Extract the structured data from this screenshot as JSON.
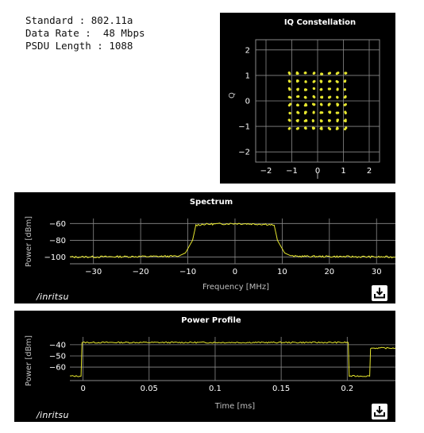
{
  "info": {
    "standard": "Standard : 802.11a",
    "data_rate": "Data Rate :  48 Mbps",
    "psdu_length": "PSDU Length : 1088"
  },
  "colors": {
    "trace": "#e6e62e",
    "grid": "#8a8a8a",
    "background": "#000000"
  },
  "icons": {
    "download": "download-icon"
  },
  "brand": {
    "logo_text": "/inritsu"
  },
  "chart_data": [
    {
      "type": "scatter",
      "title": "IQ Constellation",
      "xlabel": "I",
      "ylabel": "Q",
      "xlim": [
        -2.4,
        2.4
      ],
      "ylim": [
        -2.4,
        2.4
      ],
      "xticks": [
        -2,
        -1,
        0,
        1,
        2
      ],
      "yticks": [
        -2,
        -1,
        0,
        1,
        2
      ],
      "grid": true,
      "points": "64-QAM grid, levels ±1.08, ±0.77, ±0.46, ±0.15 on I and Q"
    },
    {
      "type": "line",
      "title": "Spectrum",
      "xlabel": "Frequency [MHz]",
      "ylabel": "Power [dBm]",
      "xlim": [
        -35,
        34
      ],
      "ylim": [
        -108,
        -54
      ],
      "xticks": [
        -30,
        -20,
        -10,
        0,
        10,
        20,
        30
      ],
      "yticks": [
        -60,
        -80,
        -100
      ],
      "grid": true,
      "series": [
        {
          "x": [
            -35,
            -12,
            -10.5,
            -9,
            -8.3,
            -7,
            0,
            7,
            8.3,
            9,
            10.5,
            12,
            34
          ],
          "y": [
            -100,
            -99,
            -95,
            -80,
            -62,
            -61,
            -60,
            -61,
            -62,
            -80,
            -95,
            -99,
            -100
          ]
        }
      ]
    },
    {
      "type": "line",
      "title": "Power Profile",
      "xlabel": "Time [ms]",
      "ylabel": "Power [dBm]",
      "xlim": [
        -0.01,
        0.2365
      ],
      "ylim": [
        -72,
        -33
      ],
      "xticks": [
        0,
        0.05,
        0.1,
        0.15,
        0.2
      ],
      "yticks": [
        -40,
        -50,
        -60
      ],
      "grid": true,
      "series": [
        {
          "x": [
            -0.01,
            -0.0015,
            -0.0008,
            0.0,
            0.2,
            0.2008,
            0.2015,
            0.217,
            0.2177,
            0.2185,
            0.2365
          ],
          "y": [
            -68,
            -68,
            -38,
            -38,
            -38,
            -38,
            -68,
            -68,
            -43,
            -43,
            -43
          ]
        }
      ]
    }
  ]
}
